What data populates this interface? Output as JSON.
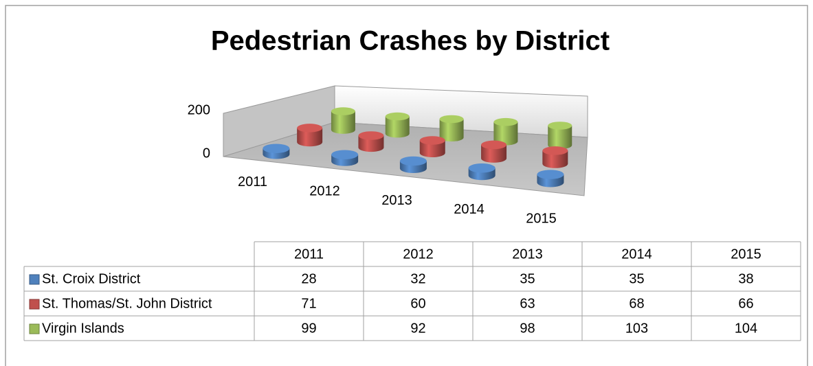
{
  "chart_data": {
    "type": "cylinder3d",
    "title": "Pedestrian Crashes by District",
    "categories": [
      "2011",
      "2012",
      "2013",
      "2014",
      "2015"
    ],
    "series": [
      {
        "name": "St. Croix District",
        "color": "#4f81bd",
        "values": [
          28,
          32,
          35,
          35,
          38
        ]
      },
      {
        "name": "St. Thomas/St. John District",
        "color": "#c0504d",
        "values": [
          71,
          60,
          63,
          68,
          66
        ]
      },
      {
        "name": "Virgin Islands",
        "color": "#9bbb59",
        "values": [
          99,
          92,
          98,
          103,
          104
        ]
      }
    ],
    "ylim": [
      0,
      200
    ],
    "yticks": [
      0,
      200
    ],
    "grid": false,
    "data_table": true
  }
}
